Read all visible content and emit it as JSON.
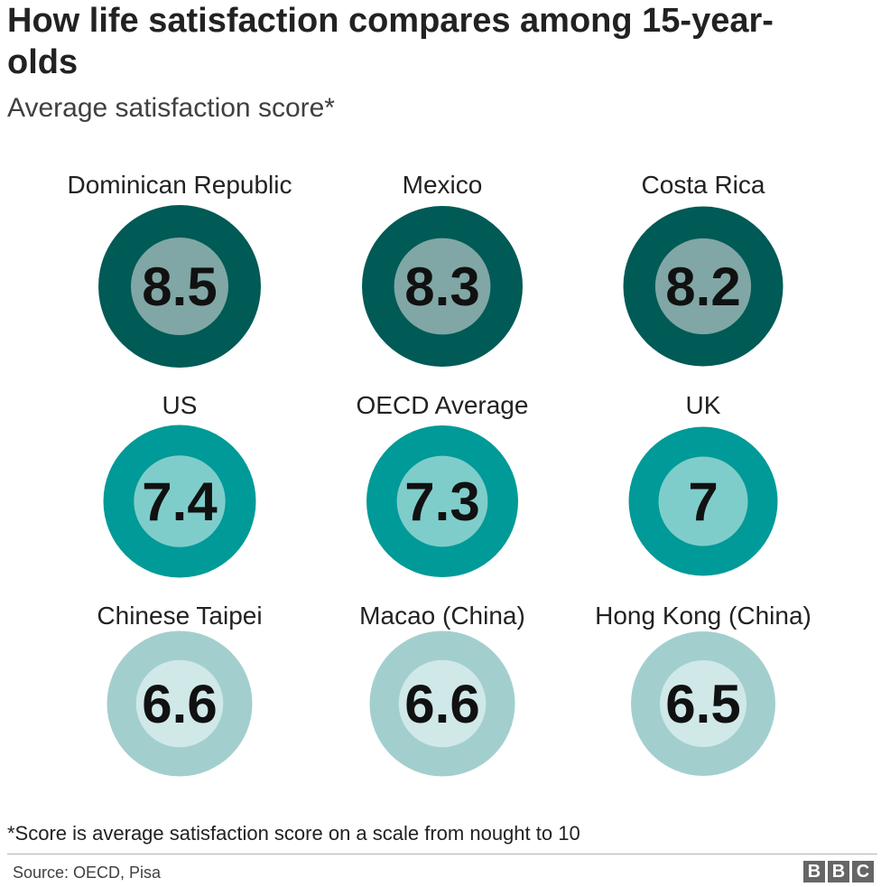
{
  "title": "How life satisfaction compares among 15-year-olds",
  "subtitle": "Average satisfaction score*",
  "footnote": "*Score is average satisfaction score on a scale from nought to 10",
  "source": "Source: OECD, Pisa",
  "logo": [
    "B",
    "B",
    "C"
  ],
  "colors": {
    "tier_high_outer": "#005a56",
    "tier_high_inner": "#80a7a5",
    "tier_mid_outer": "#009a98",
    "tier_mid_inner": "#7fcdcb",
    "tier_low_outer": "#a2cfce",
    "tier_low_inner": "#d0e8e8"
  },
  "chart_data": {
    "type": "bubble-grid",
    "scale": [
      0,
      10
    ],
    "items": [
      {
        "label": "Dominican Republic",
        "value": 8.5,
        "display": "8.5",
        "tier": "high"
      },
      {
        "label": "Mexico",
        "value": 8.3,
        "display": "8.3",
        "tier": "high"
      },
      {
        "label": "Costa Rica",
        "value": 8.2,
        "display": "8.2",
        "tier": "high"
      },
      {
        "label": "US",
        "value": 7.4,
        "display": "7.4",
        "tier": "mid"
      },
      {
        "label": "OECD Average",
        "value": 7.3,
        "display": "7.3",
        "tier": "mid"
      },
      {
        "label": "UK",
        "value": 7.0,
        "display": "7",
        "tier": "mid"
      },
      {
        "label": "Chinese Taipei",
        "value": 6.6,
        "display": "6.6",
        "tier": "low"
      },
      {
        "label": "Macao (China)",
        "value": 6.6,
        "display": "6.6",
        "tier": "low"
      },
      {
        "label": "Hong Kong (China)",
        "value": 6.5,
        "display": "6.5",
        "tier": "low"
      }
    ]
  }
}
